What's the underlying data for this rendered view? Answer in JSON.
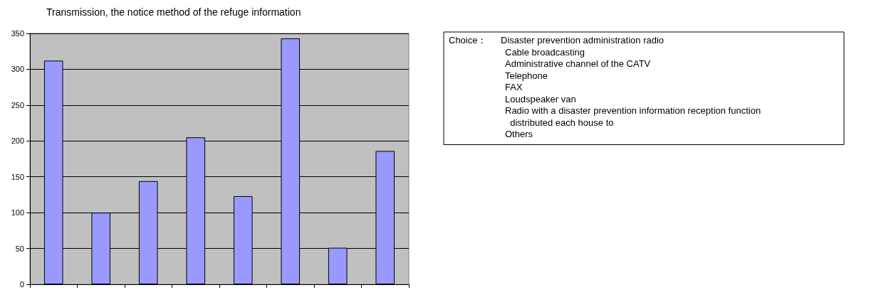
{
  "chart_data": {
    "type": "bar",
    "title": "Transmission, the notice method of the refuge information",
    "categories": [
      null,
      null,
      null,
      null,
      null,
      null,
      null,
      null
    ],
    "values": [
      312,
      100,
      144,
      205,
      123,
      343,
      51,
      186
    ],
    "color": "#9999ff",
    "ylim": [
      0,
      350
    ],
    "yticks": [
      0,
      50,
      100,
      150,
      200,
      250,
      300,
      350
    ],
    "grid": "y",
    "annotations": [
      "Choice：",
      "Disaster prevention administration radio",
      "Cable broadcasting",
      "Administrative channel of the CATV",
      "Telephone",
      "FAX",
      "Loudspeaker van",
      "Radio with a disaster prevention information reception function",
      "  distributed each house to",
      "Others"
    ]
  }
}
